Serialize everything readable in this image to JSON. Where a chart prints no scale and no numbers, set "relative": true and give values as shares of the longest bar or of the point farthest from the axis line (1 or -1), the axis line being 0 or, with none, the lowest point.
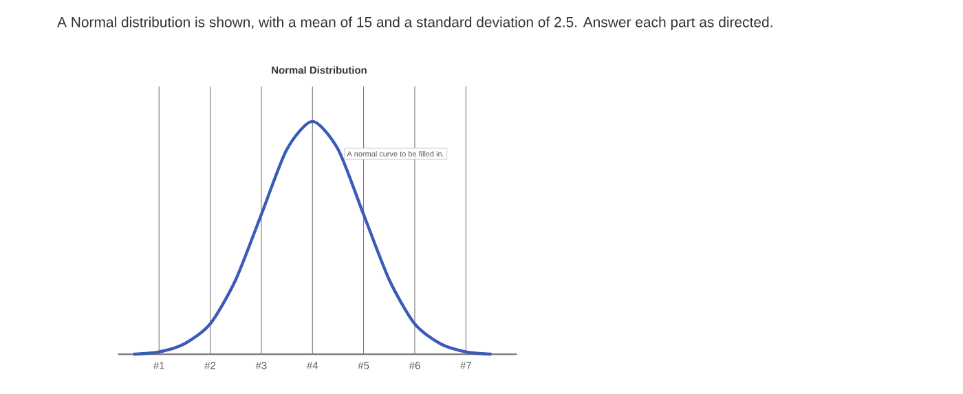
{
  "chart_data": {
    "type": "line",
    "title": "A Normal distribution is shown, with a mean of 15 and a standard deviation of 2.5. Answer each part as directed.",
    "subtitle": "Normal Distribution",
    "annotations": [
      "A normal curve to be filled in."
    ],
    "relative": true,
    "grid": "x",
    "marker": "none",
    "line_style": "solid",
    "categories": [
      null,
      "#1",
      null,
      "#2",
      null,
      "#3",
      null,
      "#4",
      null,
      "#5",
      null,
      "#6",
      null,
      "#7",
      null
    ],
    "series": [
      {
        "color": "#3a5bb8",
        "values": [
          0,
          0.01,
          0.045,
          0.13,
          0.32,
          0.6,
          0.88,
          1,
          0.88,
          0.6,
          0.32,
          0.13,
          0.045,
          0.01,
          0
        ]
      }
    ]
  }
}
